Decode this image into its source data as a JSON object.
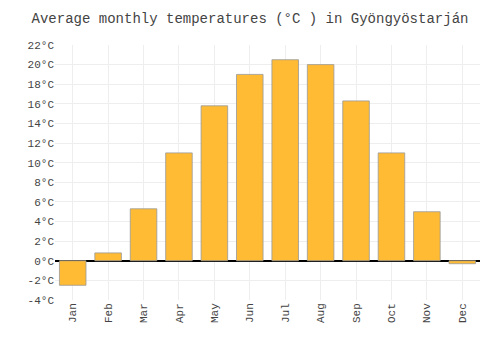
{
  "chart_data": {
    "type": "bar",
    "title": "Average monthly temperatures (°C ) in Gyöngyöstarján",
    "categories": [
      "Jan",
      "Feb",
      "Mar",
      "Apr",
      "May",
      "Jun",
      "Jul",
      "Aug",
      "Sep",
      "Oct",
      "Nov",
      "Dec"
    ],
    "values": [
      -2.5,
      0.8,
      5.3,
      11.0,
      15.8,
      19.0,
      20.5,
      20.0,
      16.3,
      11.0,
      5.0,
      -0.3
    ],
    "color": "#FFBB33",
    "ylim": [
      -4,
      22
    ],
    "yticks": [
      {
        "value": -4,
        "label": "-4°C"
      },
      {
        "value": -2,
        "label": "-2°C"
      },
      {
        "value": 0,
        "label": "0°C"
      },
      {
        "value": 2,
        "label": "2°C"
      },
      {
        "value": 4,
        "label": "4°C"
      },
      {
        "value": 6,
        "label": "6°C"
      },
      {
        "value": 8,
        "label": "8°C"
      },
      {
        "value": 10,
        "label": "10°C"
      },
      {
        "value": 12,
        "label": "12°C"
      },
      {
        "value": 14,
        "label": "14°C"
      },
      {
        "value": 16,
        "label": "16°C"
      },
      {
        "value": 18,
        "label": "18°C"
      },
      {
        "value": 20,
        "label": "20°C"
      },
      {
        "value": 22,
        "label": "22°C"
      }
    ],
    "grid": true
  }
}
